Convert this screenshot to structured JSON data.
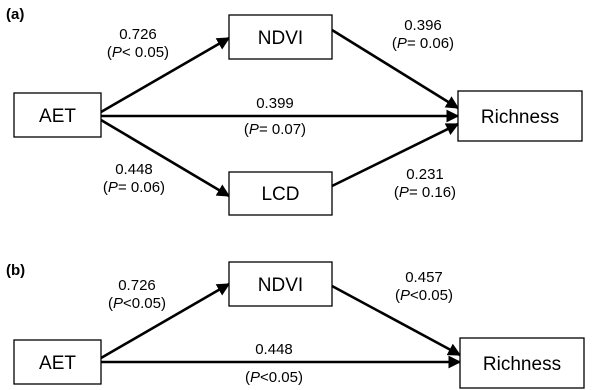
{
  "panels": [
    {
      "label": "(a)",
      "nodes": {
        "aet": "AET",
        "ndvi": "NDVI",
        "lcd": "LCD",
        "richness": "Richness"
      },
      "paths": {
        "aet_ndvi": {
          "coef": "0.726",
          "p_italic": "P",
          "p_rest": "< 0.05)"
        },
        "ndvi_richness": {
          "coef": "0.396",
          "p_italic": "P",
          "p_rest": "= 0.06)"
        },
        "aet_richness": {
          "coef": "0.399",
          "p_italic": "P",
          "p_rest": "= 0.07)"
        },
        "aet_lcd": {
          "coef": "0.448",
          "p_italic": "P",
          "p_rest": "= 0.06)"
        },
        "lcd_richness": {
          "coef": "0.231",
          "p_italic": "P",
          "p_rest": "= 0.16)"
        }
      }
    },
    {
      "label": "(b)",
      "nodes": {
        "aet": "AET",
        "ndvi": "NDVI",
        "richness": "Richness"
      },
      "paths": {
        "aet_ndvi": {
          "coef": "0.726",
          "p_italic": "P",
          "p_rest": "<0.05)"
        },
        "ndvi_richness": {
          "coef": "0.457",
          "p_italic": "P",
          "p_rest": "<0.05)"
        },
        "aet_richness": {
          "coef": "0.448",
          "p_italic": "P",
          "p_rest": "<0.05)"
        }
      }
    }
  ]
}
